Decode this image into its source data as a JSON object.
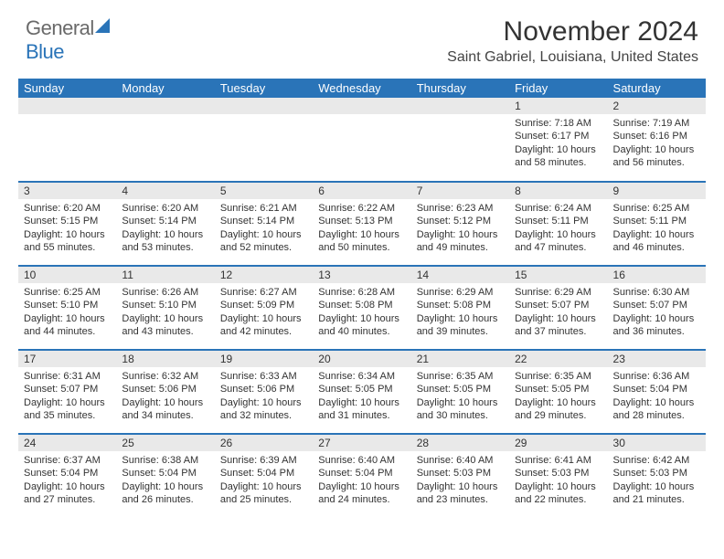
{
  "brand": {
    "general": "General",
    "blue": "Blue"
  },
  "title": "November 2024",
  "location": "Saint Gabriel, Louisiana, United States",
  "colors": {
    "header_bg": "#2a74b8",
    "header_text": "#ffffff",
    "daynum_bg": "#e9e9e9",
    "border": "#2a74b8",
    "logo_gray": "#6a6a6a",
    "logo_blue": "#2a74b8"
  },
  "typography": {
    "title_fontsize": 30,
    "location_fontsize": 16,
    "dayheader_fontsize": 13,
    "cell_fontsize": 11
  },
  "day_headers": [
    "Sunday",
    "Monday",
    "Tuesday",
    "Wednesday",
    "Thursday",
    "Friday",
    "Saturday"
  ],
  "weeks": [
    [
      {
        "n": "",
        "sunrise": "",
        "sunset": "",
        "daylight": ""
      },
      {
        "n": "",
        "sunrise": "",
        "sunset": "",
        "daylight": ""
      },
      {
        "n": "",
        "sunrise": "",
        "sunset": "",
        "daylight": ""
      },
      {
        "n": "",
        "sunrise": "",
        "sunset": "",
        "daylight": ""
      },
      {
        "n": "",
        "sunrise": "",
        "sunset": "",
        "daylight": ""
      },
      {
        "n": "1",
        "sunrise": "Sunrise: 7:18 AM",
        "sunset": "Sunset: 6:17 PM",
        "daylight": "Daylight: 10 hours and 58 minutes."
      },
      {
        "n": "2",
        "sunrise": "Sunrise: 7:19 AM",
        "sunset": "Sunset: 6:16 PM",
        "daylight": "Daylight: 10 hours and 56 minutes."
      }
    ],
    [
      {
        "n": "3",
        "sunrise": "Sunrise: 6:20 AM",
        "sunset": "Sunset: 5:15 PM",
        "daylight": "Daylight: 10 hours and 55 minutes."
      },
      {
        "n": "4",
        "sunrise": "Sunrise: 6:20 AM",
        "sunset": "Sunset: 5:14 PM",
        "daylight": "Daylight: 10 hours and 53 minutes."
      },
      {
        "n": "5",
        "sunrise": "Sunrise: 6:21 AM",
        "sunset": "Sunset: 5:14 PM",
        "daylight": "Daylight: 10 hours and 52 minutes."
      },
      {
        "n": "6",
        "sunrise": "Sunrise: 6:22 AM",
        "sunset": "Sunset: 5:13 PM",
        "daylight": "Daylight: 10 hours and 50 minutes."
      },
      {
        "n": "7",
        "sunrise": "Sunrise: 6:23 AM",
        "sunset": "Sunset: 5:12 PM",
        "daylight": "Daylight: 10 hours and 49 minutes."
      },
      {
        "n": "8",
        "sunrise": "Sunrise: 6:24 AM",
        "sunset": "Sunset: 5:11 PM",
        "daylight": "Daylight: 10 hours and 47 minutes."
      },
      {
        "n": "9",
        "sunrise": "Sunrise: 6:25 AM",
        "sunset": "Sunset: 5:11 PM",
        "daylight": "Daylight: 10 hours and 46 minutes."
      }
    ],
    [
      {
        "n": "10",
        "sunrise": "Sunrise: 6:25 AM",
        "sunset": "Sunset: 5:10 PM",
        "daylight": "Daylight: 10 hours and 44 minutes."
      },
      {
        "n": "11",
        "sunrise": "Sunrise: 6:26 AM",
        "sunset": "Sunset: 5:10 PM",
        "daylight": "Daylight: 10 hours and 43 minutes."
      },
      {
        "n": "12",
        "sunrise": "Sunrise: 6:27 AM",
        "sunset": "Sunset: 5:09 PM",
        "daylight": "Daylight: 10 hours and 42 minutes."
      },
      {
        "n": "13",
        "sunrise": "Sunrise: 6:28 AM",
        "sunset": "Sunset: 5:08 PM",
        "daylight": "Daylight: 10 hours and 40 minutes."
      },
      {
        "n": "14",
        "sunrise": "Sunrise: 6:29 AM",
        "sunset": "Sunset: 5:08 PM",
        "daylight": "Daylight: 10 hours and 39 minutes."
      },
      {
        "n": "15",
        "sunrise": "Sunrise: 6:29 AM",
        "sunset": "Sunset: 5:07 PM",
        "daylight": "Daylight: 10 hours and 37 minutes."
      },
      {
        "n": "16",
        "sunrise": "Sunrise: 6:30 AM",
        "sunset": "Sunset: 5:07 PM",
        "daylight": "Daylight: 10 hours and 36 minutes."
      }
    ],
    [
      {
        "n": "17",
        "sunrise": "Sunrise: 6:31 AM",
        "sunset": "Sunset: 5:07 PM",
        "daylight": "Daylight: 10 hours and 35 minutes."
      },
      {
        "n": "18",
        "sunrise": "Sunrise: 6:32 AM",
        "sunset": "Sunset: 5:06 PM",
        "daylight": "Daylight: 10 hours and 34 minutes."
      },
      {
        "n": "19",
        "sunrise": "Sunrise: 6:33 AM",
        "sunset": "Sunset: 5:06 PM",
        "daylight": "Daylight: 10 hours and 32 minutes."
      },
      {
        "n": "20",
        "sunrise": "Sunrise: 6:34 AM",
        "sunset": "Sunset: 5:05 PM",
        "daylight": "Daylight: 10 hours and 31 minutes."
      },
      {
        "n": "21",
        "sunrise": "Sunrise: 6:35 AM",
        "sunset": "Sunset: 5:05 PM",
        "daylight": "Daylight: 10 hours and 30 minutes."
      },
      {
        "n": "22",
        "sunrise": "Sunrise: 6:35 AM",
        "sunset": "Sunset: 5:05 PM",
        "daylight": "Daylight: 10 hours and 29 minutes."
      },
      {
        "n": "23",
        "sunrise": "Sunrise: 6:36 AM",
        "sunset": "Sunset: 5:04 PM",
        "daylight": "Daylight: 10 hours and 28 minutes."
      }
    ],
    [
      {
        "n": "24",
        "sunrise": "Sunrise: 6:37 AM",
        "sunset": "Sunset: 5:04 PM",
        "daylight": "Daylight: 10 hours and 27 minutes."
      },
      {
        "n": "25",
        "sunrise": "Sunrise: 6:38 AM",
        "sunset": "Sunset: 5:04 PM",
        "daylight": "Daylight: 10 hours and 26 minutes."
      },
      {
        "n": "26",
        "sunrise": "Sunrise: 6:39 AM",
        "sunset": "Sunset: 5:04 PM",
        "daylight": "Daylight: 10 hours and 25 minutes."
      },
      {
        "n": "27",
        "sunrise": "Sunrise: 6:40 AM",
        "sunset": "Sunset: 5:04 PM",
        "daylight": "Daylight: 10 hours and 24 minutes."
      },
      {
        "n": "28",
        "sunrise": "Sunrise: 6:40 AM",
        "sunset": "Sunset: 5:03 PM",
        "daylight": "Daylight: 10 hours and 23 minutes."
      },
      {
        "n": "29",
        "sunrise": "Sunrise: 6:41 AM",
        "sunset": "Sunset: 5:03 PM",
        "daylight": "Daylight: 10 hours and 22 minutes."
      },
      {
        "n": "30",
        "sunrise": "Sunrise: 6:42 AM",
        "sunset": "Sunset: 5:03 PM",
        "daylight": "Daylight: 10 hours and 21 minutes."
      }
    ]
  ]
}
